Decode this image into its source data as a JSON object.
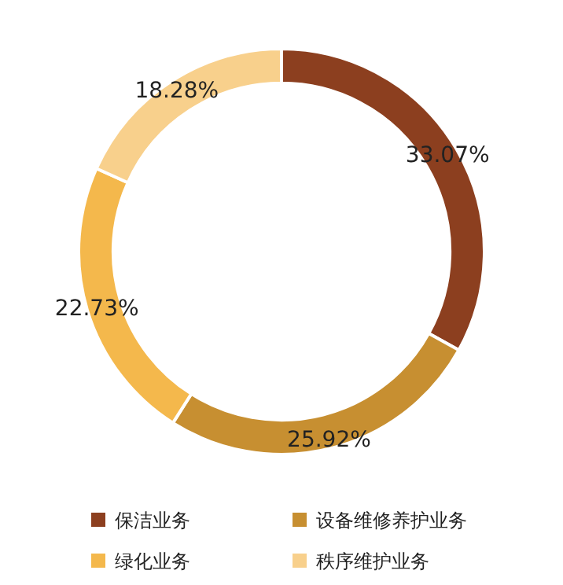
{
  "chart_data": {
    "type": "donut",
    "categories": [
      "保洁业务",
      "设备维修养护业务",
      "绿化业务",
      "秩序维护业务"
    ],
    "values": [
      33.07,
      25.92,
      22.73,
      18.28
    ],
    "value_labels": [
      "33.07%",
      "25.92%",
      "22.73%",
      "18.28%"
    ],
    "colors": [
      "#8c3f1f",
      "#c78f31",
      "#f4b84c",
      "#f8d08c"
    ],
    "legend": "bottom"
  }
}
